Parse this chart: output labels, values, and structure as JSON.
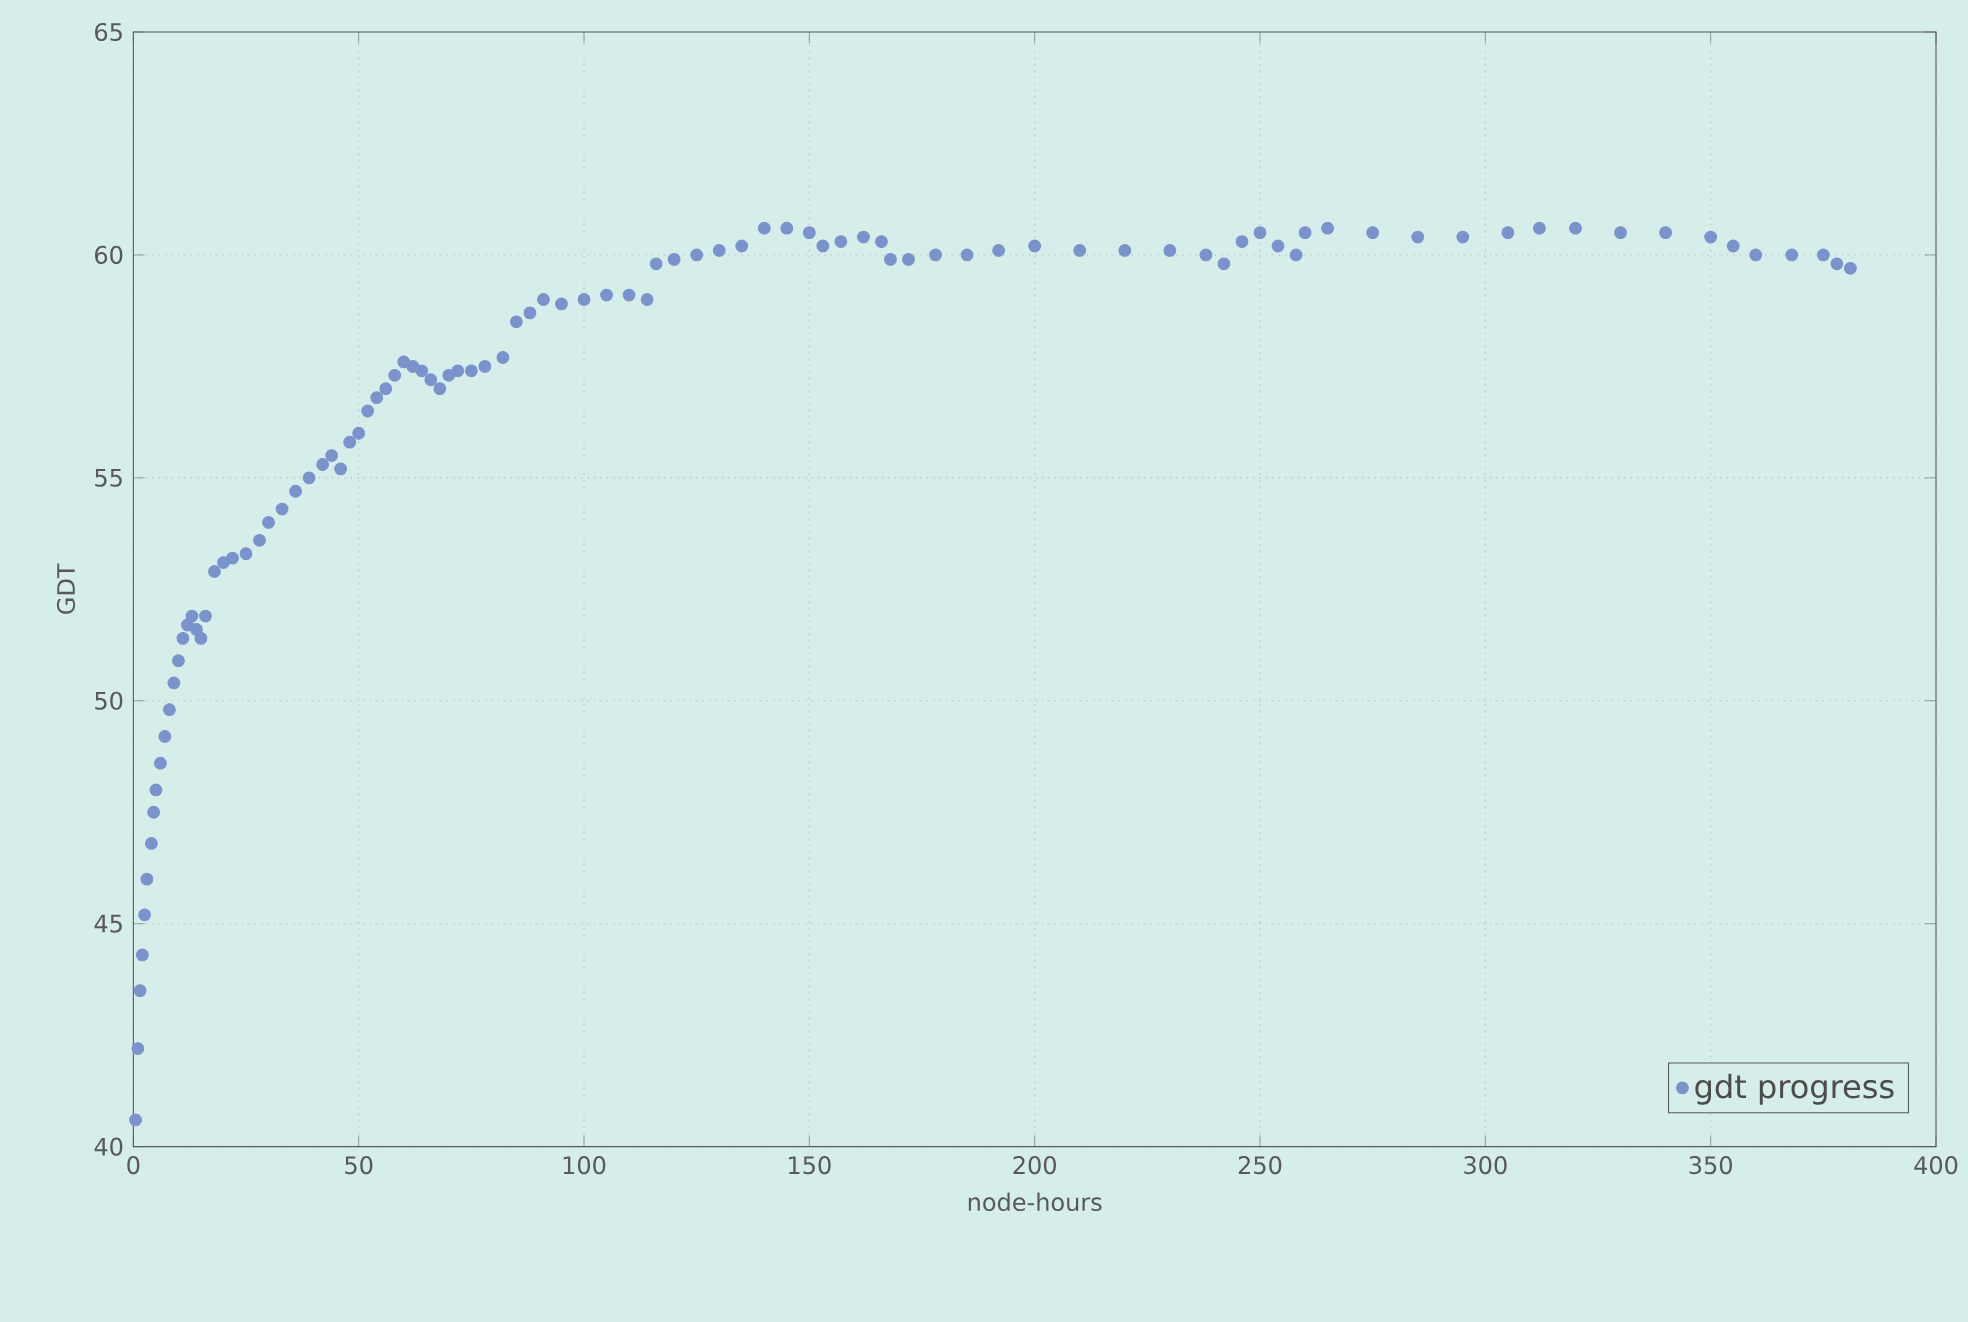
{
  "chart_data": {
    "type": "scatter",
    "xlabel": "node-hours",
    "ylabel": "GDT",
    "xlim": [
      0,
      400
    ],
    "ylim": [
      40,
      65
    ],
    "xticks": [
      0,
      50,
      100,
      150,
      200,
      250,
      300,
      350,
      400
    ],
    "yticks": [
      40,
      45,
      50,
      55,
      60,
      65
    ],
    "grid": true,
    "legend": "bottom right",
    "marker": "circle",
    "series": [
      {
        "name": "gdt progress",
        "color": "#7b93cc",
        "x": [
          0.5,
          1,
          1.5,
          2,
          2.5,
          3,
          4,
          4.5,
          5,
          6,
          7,
          8,
          9,
          10,
          11,
          12,
          13,
          14,
          15,
          16,
          18,
          20,
          22,
          25,
          28,
          30,
          33,
          36,
          39,
          42,
          44,
          46,
          48,
          50,
          52,
          54,
          56,
          58,
          60,
          62,
          64,
          66,
          68,
          70,
          72,
          75,
          78,
          82,
          85,
          88,
          91,
          95,
          100,
          105,
          110,
          114,
          116,
          120,
          125,
          130,
          135,
          140,
          145,
          150,
          153,
          157,
          162,
          166,
          168,
          172,
          178,
          185,
          192,
          200,
          210,
          220,
          230,
          238,
          242,
          246,
          250,
          254,
          258,
          260,
          265,
          275,
          285,
          295,
          305,
          312,
          320,
          330,
          340,
          350,
          355,
          360,
          368,
          375,
          378,
          381
        ],
        "values": [
          40.6,
          42.2,
          43.5,
          44.3,
          45.2,
          46.0,
          46.8,
          47.5,
          48.0,
          48.6,
          49.2,
          49.8,
          50.4,
          50.9,
          51.4,
          51.7,
          51.9,
          51.6,
          51.4,
          51.9,
          52.9,
          53.1,
          53.2,
          53.3,
          53.6,
          54.0,
          54.3,
          54.7,
          55.0,
          55.3,
          55.5,
          55.2,
          55.8,
          56.0,
          56.5,
          56.8,
          57.0,
          57.3,
          57.6,
          57.5,
          57.4,
          57.2,
          57.0,
          57.3,
          57.4,
          57.4,
          57.5,
          57.7,
          58.5,
          58.7,
          59.0,
          58.9,
          59.0,
          59.1,
          59.1,
          59.0,
          59.8,
          59.9,
          60.0,
          60.1,
          60.2,
          60.6,
          60.6,
          60.5,
          60.2,
          60.3,
          60.4,
          60.3,
          59.9,
          59.9,
          60.0,
          60.0,
          60.1,
          60.2,
          60.1,
          60.1,
          60.1,
          60.0,
          59.8,
          60.3,
          60.5,
          60.2,
          60.0,
          60.5,
          60.6,
          60.5,
          60.4,
          60.4,
          60.5,
          60.6,
          60.6,
          60.5,
          60.5,
          60.4,
          60.2,
          60.0,
          60.0,
          60.0,
          59.8,
          59.7
        ]
      }
    ]
  }
}
